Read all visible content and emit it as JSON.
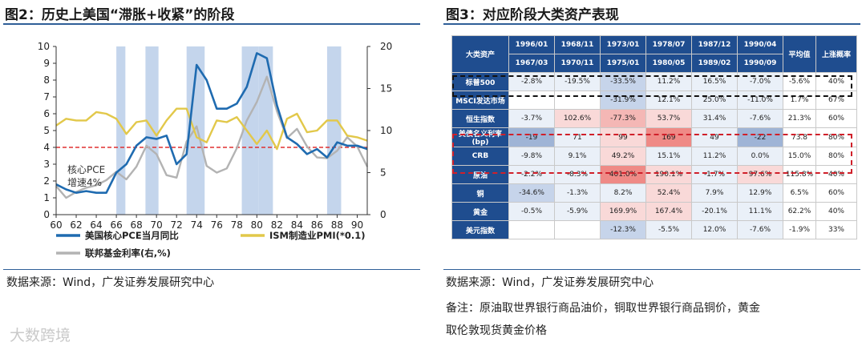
{
  "left": {
    "title": "图2：历史上美国“滞胀+收紧”的阶段",
    "source": "数据来源：Wind，广发证券发展研究中心",
    "annotation_line1": "核心PCE",
    "annotation_line2": "增速4%",
    "legend": [
      "美国核心PCE当月同比",
      "ISM制造业PMI(*0.1)",
      "联邦基金利率(右,%)"
    ]
  },
  "right": {
    "title": "图3：对应阶段大类资产表现",
    "source": "数据来源：Wind，广发证券发展研究中心",
    "note_line1": "备注：原油取世界银行商品油价，铜取世界银行商品铜价，黄金",
    "note_line2": "取伦敦现货黄金价格"
  },
  "watermark": "大数跨境",
  "colors": {
    "pce": "#1f6bb0",
    "pmi": "#e2c84a",
    "fed": "#b3b3b3",
    "band": "#c4d5ec",
    "refline": "#e03030",
    "header": "#1f4d8f",
    "axis": "#333333"
  },
  "chart_data": {
    "type": "line",
    "title": "图2：历史上美国“滞胀+收紧”的阶段",
    "xlabel": "",
    "x_ticks": [
      60,
      62,
      64,
      66,
      68,
      70,
      72,
      74,
      76,
      78,
      80,
      82,
      84,
      86,
      88,
      90
    ],
    "xlim": [
      60,
      91
    ],
    "ylim_left": [
      0,
      10
    ],
    "yticks_left": [
      0,
      1,
      2,
      3,
      4,
      5,
      6,
      7,
      8,
      9,
      10
    ],
    "ylim_right": [
      0,
      20
    ],
    "yticks_right": [
      0,
      5,
      10,
      15,
      20
    ],
    "reference_line": {
      "axis": "left",
      "value": 4,
      "label": "核心PCE增速4%"
    },
    "shaded_periods": [
      [
        66.0,
        66.9
      ],
      [
        68.9,
        70.2
      ],
      [
        73.0,
        74.8
      ],
      [
        78.5,
        80.2
      ],
      [
        80.2,
        81.6
      ],
      [
        87.0,
        88.4
      ]
    ],
    "series": [
      {
        "name": "美国核心PCE当月同比",
        "axis": "left",
        "x": [
          60,
          61,
          62,
          63,
          64,
          65,
          66,
          67,
          68,
          69,
          70,
          71,
          72,
          73,
          74,
          75,
          76,
          77,
          78,
          79,
          80,
          81,
          82,
          83,
          84,
          85,
          86,
          87,
          88,
          89,
          90,
          91
        ],
        "y": [
          1.8,
          1.5,
          1.3,
          1.4,
          1.3,
          1.3,
          2.5,
          3.0,
          4.1,
          4.6,
          4.5,
          4.7,
          3.0,
          3.6,
          8.9,
          8.0,
          6.3,
          6.3,
          6.6,
          7.6,
          9.6,
          9.3,
          6.5,
          4.6,
          4.2,
          3.6,
          3.9,
          3.4,
          4.3,
          4.1,
          4.1,
          3.9
        ]
      },
      {
        "name": "ISM制造业PMI(*0.1)",
        "axis": "left",
        "x": [
          60,
          61,
          62,
          63,
          64,
          65,
          66,
          67,
          68,
          69,
          70,
          71,
          72,
          73,
          74,
          75,
          76,
          77,
          78,
          79,
          80,
          81,
          82,
          83,
          84,
          85,
          86,
          87,
          88,
          89,
          90,
          91
        ],
        "y": [
          5.3,
          5.7,
          5.6,
          5.6,
          6.1,
          6.0,
          5.7,
          4.8,
          5.5,
          5.6,
          4.7,
          5.6,
          6.3,
          6.3,
          4.6,
          4.3,
          5.6,
          5.5,
          5.8,
          5.0,
          4.2,
          5.0,
          3.9,
          5.7,
          6.0,
          4.9,
          5.0,
          5.6,
          5.6,
          4.7,
          4.6,
          4.4
        ]
      },
      {
        "name": "联邦基金利率(右,%)",
        "axis": "right",
        "x": [
          60,
          61,
          62,
          63,
          64,
          65,
          66,
          67,
          68,
          69,
          70,
          71,
          72,
          73,
          74,
          75,
          76,
          77,
          78,
          79,
          80,
          81,
          82,
          83,
          84,
          85,
          86,
          87,
          88,
          89,
          90,
          91
        ],
        "y": [
          3.4,
          2.0,
          2.7,
          3.2,
          3.5,
          4.1,
          5.1,
          4.2,
          5.7,
          8.2,
          7.2,
          4.7,
          4.4,
          8.7,
          10.5,
          5.8,
          5.0,
          5.5,
          7.9,
          11.2,
          13.4,
          16.4,
          12.3,
          9.1,
          10.2,
          8.1,
          6.8,
          6.7,
          7.6,
          9.2,
          8.1,
          5.7
        ]
      }
    ]
  },
  "table": {
    "col_header": "大类资产",
    "periods": [
      {
        "start": "1996/01",
        "end": "1967/03"
      },
      {
        "start": "1968/11",
        "end": "1970/11"
      },
      {
        "start": "1973/01",
        "end": "1975/01"
      },
      {
        "start": "1978/07",
        "end": "1980/05"
      },
      {
        "start": "1987/12",
        "end": "1989/02"
      },
      {
        "start": "1990/04",
        "end": "1990/09"
      }
    ],
    "avg_header": "平均值",
    "up_header": "上涨概率",
    "rows": [
      {
        "name": "标普500",
        "cells": [
          "-2.8%",
          "-19.5%",
          "-33.5%",
          "11.2%",
          "16.5%",
          "-7.0%"
        ],
        "avg": "-5.6%",
        "up": "40%",
        "heat": [
          1,
          1,
          2,
          1,
          1,
          1
        ]
      },
      {
        "name": "MSCI发达市场",
        "cells": [
          "",
          "",
          "-31.9%",
          "12.1%",
          "25.0%",
          "-11.0%"
        ],
        "avg": "1.7%",
        "up": "67%",
        "heat": [
          0,
          0,
          2,
          1,
          1,
          1
        ]
      },
      {
        "name": "恒生指数",
        "cells": [
          "-3.7%",
          "102.6%",
          "-77.3%",
          "53.7%",
          "31.4%",
          "-7.6%"
        ],
        "avg": "21.3%",
        "up": "60%",
        "heat": [
          1,
          3,
          4,
          3,
          1,
          1
        ]
      },
      {
        "name": "美债名义利率\n(bp)",
        "cells": [
          "-19",
          "71",
          "99",
          "169",
          "49",
          "-22"
        ],
        "avg": "73.8",
        "up": "80%",
        "heat": [
          5,
          1,
          3,
          6,
          1,
          5
        ]
      },
      {
        "name": "CRB",
        "cells": [
          "-9.8%",
          "9.1%",
          "49.2%",
          "15.1%",
          "11.2%",
          "0.0%"
        ],
        "avg": "15.0%",
        "up": "80%",
        "heat": [
          1,
          1,
          3,
          1,
          1,
          1
        ]
      },
      {
        "name": "原油",
        "cells": [
          "-2.2%",
          "-8.3%",
          "401.0%",
          "190.1%",
          "-1.7%",
          "97.6%"
        ],
        "avg": "115.8%",
        "up": "40%",
        "heat": [
          1,
          1,
          6,
          3,
          1,
          3
        ]
      },
      {
        "name": "铜",
        "cells": [
          "-34.6%",
          "-1.3%",
          "8.2%",
          "52.4%",
          "7.9%",
          "12.9%"
        ],
        "avg": "6.5%",
        "up": "60%",
        "heat": [
          2,
          1,
          1,
          3,
          1,
          1
        ]
      },
      {
        "name": "黄金",
        "cells": [
          "-0.5%",
          "-5.9%",
          "169.9%",
          "167.4%",
          "-20.1%",
          "11.1%"
        ],
        "avg": "62.2%",
        "up": "40%",
        "heat": [
          1,
          1,
          3,
          3,
          1,
          1
        ]
      },
      {
        "name": "美元指数",
        "cells": [
          "",
          "",
          "-12.3%",
          "-5.5%",
          "12.0%",
          "-7.6%"
        ],
        "avg": "-1.9%",
        "up": "33%",
        "heat": [
          0,
          0,
          2,
          1,
          1,
          1
        ]
      }
    ]
  }
}
